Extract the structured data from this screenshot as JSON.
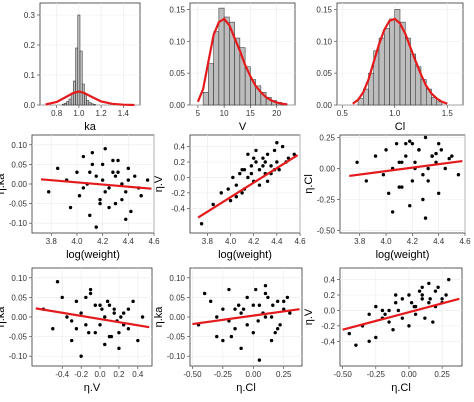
{
  "chart_data": [
    {
      "type": "bar",
      "id": "hist-ka",
      "title": "",
      "xlabel": "ka",
      "ylabel": "",
      "xlim": [
        0.65,
        1.55
      ],
      "ylim": [
        0,
        0.34
      ],
      "xticks": [
        "0.8",
        "1.0",
        "1.2",
        "1.4"
      ],
      "yticks": [
        "0.0",
        "0.1",
        "0.2",
        "0.3"
      ],
      "bin_edges": [
        0.85,
        0.87,
        0.89,
        0.91,
        0.93,
        0.95,
        0.97,
        0.99,
        1.01,
        1.03,
        1.05,
        1.07,
        1.09,
        1.11,
        1.13,
        1.15
      ],
      "values": [
        0.003,
        0.006,
        0.012,
        0.02,
        0.04,
        0.08,
        0.19,
        0.3,
        0.18,
        0.07,
        0.035,
        0.015,
        0.008,
        0.004,
        0.002
      ],
      "density_curve": {
        "x": [
          0.7,
          0.8,
          0.9,
          0.95,
          1.0,
          1.05,
          1.1,
          1.2,
          1.3,
          1.4,
          1.5
        ],
        "y": [
          0.002,
          0.01,
          0.03,
          0.04,
          0.045,
          0.04,
          0.03,
          0.012,
          0.004,
          0.001,
          0.0
        ]
      }
    },
    {
      "type": "bar",
      "id": "hist-v",
      "title": "",
      "xlabel": "V",
      "ylabel": "",
      "xlim": [
        3.5,
        23.5
      ],
      "ylim": [
        0,
        0.16
      ],
      "xticks": [
        "5",
        "10",
        "15",
        "20"
      ],
      "yticks": [
        "0.00",
        "0.05",
        "0.10",
        "0.15"
      ],
      "bin_edges": [
        6,
        7,
        8,
        9,
        10,
        11,
        12,
        13,
        14,
        15,
        16,
        17,
        18,
        19,
        20,
        21,
        22
      ],
      "values": [
        0.02,
        0.065,
        0.115,
        0.152,
        0.138,
        0.13,
        0.105,
        0.09,
        0.06,
        0.04,
        0.03,
        0.02,
        0.012,
        0.007,
        0.004,
        0.002
      ],
      "density_curve": {
        "x": [
          5,
          6,
          7,
          8,
          9,
          10,
          11,
          12,
          13,
          14,
          15,
          16,
          17,
          18,
          19,
          20,
          21,
          22
        ],
        "y": [
          0.005,
          0.025,
          0.068,
          0.11,
          0.13,
          0.135,
          0.125,
          0.105,
          0.085,
          0.063,
          0.045,
          0.03,
          0.02,
          0.012,
          0.007,
          0.004,
          0.002,
          0.001
        ]
      }
    },
    {
      "type": "bar",
      "id": "hist-cl",
      "title": "",
      "xlabel": "Cl",
      "ylabel": "",
      "xlim": [
        0.45,
        1.65
      ],
      "ylim": [
        0,
        0.16
      ],
      "xticks": [
        "0.5",
        "1.0",
        "1.5"
      ],
      "yticks": [
        "0.00",
        "0.05",
        "0.10",
        "0.15"
      ],
      "bin_edges": [
        0.65,
        0.7,
        0.75,
        0.8,
        0.85,
        0.9,
        0.95,
        1.0,
        1.05,
        1.1,
        1.15,
        1.2,
        1.25,
        1.3,
        1.35,
        1.4,
        1.45
      ],
      "values": [
        0.01,
        0.025,
        0.05,
        0.085,
        0.105,
        0.12,
        0.135,
        0.15,
        0.13,
        0.105,
        0.08,
        0.06,
        0.04,
        0.025,
        0.012,
        0.005
      ],
      "density_curve": {
        "x": [
          0.6,
          0.65,
          0.7,
          0.75,
          0.8,
          0.85,
          0.9,
          0.95,
          1.0,
          1.05,
          1.1,
          1.15,
          1.2,
          1.25,
          1.3,
          1.35,
          1.4,
          1.45,
          1.5
        ],
        "y": [
          0.002,
          0.008,
          0.02,
          0.04,
          0.068,
          0.095,
          0.118,
          0.132,
          0.135,
          0.128,
          0.112,
          0.09,
          0.068,
          0.048,
          0.03,
          0.018,
          0.01,
          0.005,
          0.002
        ]
      }
    },
    {
      "type": "scatter",
      "id": "scatter-logweight-ka",
      "title": "",
      "xlabel": "log(weight)",
      "ylabel": "η.ka",
      "xlim": [
        3.65,
        4.6
      ],
      "ylim": [
        -0.125,
        0.125
      ],
      "xticks": [
        "3.8",
        "4.0",
        "4.2",
        "4.4",
        "4.6"
      ],
      "yticks": [
        "-0.10",
        "-0.05",
        "0.00",
        "0.05",
        "0.10"
      ],
      "x": [
        3.78,
        3.85,
        3.92,
        3.95,
        4.0,
        4.02,
        4.05,
        4.08,
        4.1,
        4.12,
        4.15,
        4.18,
        4.2,
        4.22,
        4.25,
        4.28,
        4.3,
        4.32,
        4.35,
        4.38,
        4.4,
        4.42,
        4.45,
        4.5,
        4.55,
        4.05,
        4.1,
        4.15,
        4.2,
        4.25,
        4.3,
        4.35,
        4.4,
        4.12,
        4.22,
        4.32,
        4.18,
        4.28,
        4.38,
        4.48
      ],
      "y": [
        -0.02,
        0.04,
        0.01,
        -0.06,
        0.03,
        -0.03,
        0.07,
        0.0,
        -0.08,
        0.05,
        0.02,
        -0.04,
        0.01,
        0.09,
        -0.01,
        0.03,
        -0.05,
        0.06,
        0.0,
        -0.02,
        0.04,
        -0.07,
        0.02,
        -0.03,
        0.01,
        -0.01,
        0.03,
        -0.11,
        0.05,
        -0.06,
        0.02,
        -0.04,
        0.01,
        0.08,
        -0.02,
        0.03,
        -0.05,
        0.06,
        -0.09,
        -0.01
      ],
      "fit_line": {
        "x": [
          3.72,
          4.58
        ],
        "y": [
          0.012,
          -0.012
        ]
      }
    },
    {
      "type": "scatter",
      "id": "scatter-logweight-v",
      "title": "",
      "xlabel": "log(weight)",
      "ylabel": "η.V",
      "xlim": [
        3.65,
        4.6
      ],
      "ylim": [
        -0.72,
        0.55
      ],
      "xticks": [
        "3.8",
        "4.0",
        "4.2",
        "4.4",
        "4.6"
      ],
      "yticks": [
        "-0.4",
        "-0.2",
        "0.0",
        "0.2",
        "0.4"
      ],
      "x": [
        3.75,
        3.85,
        3.92,
        3.98,
        4.0,
        4.02,
        4.05,
        4.08,
        4.1,
        4.12,
        4.15,
        4.18,
        4.2,
        4.22,
        4.25,
        4.28,
        4.3,
        4.32,
        4.35,
        4.38,
        4.4,
        4.42,
        4.45,
        4.5,
        4.55,
        4.05,
        4.1,
        4.15,
        4.2,
        4.25,
        4.3,
        4.35,
        4.4,
        4.12,
        4.22,
        4.32,
        4.18,
        4.28,
        4.38,
        4.48
      ],
      "y": [
        -0.6,
        -0.35,
        -0.2,
        -0.15,
        -0.3,
        0.0,
        -0.1,
        0.05,
        -0.2,
        0.1,
        0.0,
        0.15,
        -0.05,
        0.2,
        0.1,
        0.25,
        0.05,
        0.3,
        0.15,
        0.35,
        0.2,
        0.1,
        0.4,
        0.25,
        0.3,
        -0.25,
        0.1,
        0.3,
        0.25,
        -0.1,
        0.2,
        0.05,
        0.45,
        -0.15,
        0.35,
        -0.05,
        0.05,
        0.15,
        0.1,
        0.2
      ],
      "fit_line": {
        "x": [
          3.72,
          4.58
        ],
        "y": [
          -0.52,
          0.29
        ]
      }
    },
    {
      "type": "scatter",
      "id": "scatter-logweight-cl",
      "title": "",
      "xlabel": "log(weight)",
      "ylabel": "η.Cl",
      "xlim": [
        3.65,
        4.6
      ],
      "ylim": [
        -0.52,
        0.27
      ],
      "xticks": [
        "3.8",
        "4.0",
        "4.2",
        "4.4",
        "4.6"
      ],
      "yticks": [
        "-0.50",
        "-0.25",
        "0.00",
        "0.25"
      ],
      "x": [
        3.78,
        3.85,
        3.92,
        3.98,
        4.0,
        4.02,
        4.05,
        4.08,
        4.1,
        4.12,
        4.15,
        4.18,
        4.2,
        4.22,
        4.25,
        4.28,
        4.3,
        4.32,
        4.35,
        4.38,
        4.4,
        4.42,
        4.45,
        4.5,
        4.55,
        4.05,
        4.1,
        4.15,
        4.2,
        4.25,
        4.3,
        4.35,
        4.4,
        4.12,
        4.22,
        4.32,
        4.18,
        4.28,
        4.38,
        4.48
      ],
      "y": [
        0.05,
        -0.1,
        0.1,
        -0.05,
        0.15,
        -0.2,
        0.0,
        0.2,
        -0.15,
        0.05,
        0.1,
        -0.3,
        0.2,
        0.0,
        0.15,
        -0.05,
        0.25,
        -0.1,
        0.1,
        0.05,
        -0.2,
        0.15,
        0.0,
        0.1,
        -0.05,
        -0.35,
        0.05,
        0.2,
        -0.1,
        0.15,
        -0.4,
        0.1,
        0.2,
        -0.15,
        0.05,
        0.0,
        0.22,
        -0.25,
        0.12,
        0.08
      ],
      "fit_line": {
        "x": [
          3.72,
          4.58
        ],
        "y": [
          -0.06,
          0.06
        ]
      }
    },
    {
      "type": "scatter",
      "id": "scatter-etav-ka",
      "title": "",
      "xlabel": "η.V",
      "ylabel": "η.ka",
      "xlim": [
        -0.72,
        0.55
      ],
      "ylim": [
        -0.125,
        0.125
      ],
      "xticks": [
        "-0.4",
        "-0.2",
        "0.0",
        "0.2",
        "0.4"
      ],
      "yticks": [
        "-0.10",
        "-0.05",
        "0.00",
        "0.05",
        "0.10"
      ],
      "x": [
        -0.6,
        -0.5,
        -0.4,
        -0.35,
        -0.3,
        -0.25,
        -0.2,
        -0.15,
        -0.1,
        -0.05,
        0.0,
        0.05,
        0.1,
        0.15,
        0.2,
        0.25,
        0.3,
        0.35,
        0.4,
        0.45,
        -0.45,
        -0.3,
        -0.2,
        -0.1,
        0.0,
        0.1,
        0.2,
        0.3,
        -0.15,
        0.05,
        0.15,
        0.25,
        -0.05,
        0.12,
        0.22,
        -0.25,
        0.08,
        0.18,
        -0.12,
        0.02
      ],
      "y": [
        0.02,
        -0.03,
        0.05,
        0.0,
        -0.06,
        0.04,
        0.01,
        -0.02,
        0.07,
        -0.04,
        0.03,
        0.0,
        -0.05,
        0.02,
        -0.08,
        0.01,
        -0.03,
        0.04,
        -0.06,
        0.0,
        0.09,
        -0.01,
        -0.1,
        0.06,
        -0.02,
        0.03,
        -0.04,
        0.02,
        0.05,
        -0.07,
        0.01,
        -0.02,
        0.03,
        -0.05,
        0.0,
        -0.03,
        0.04,
        -0.01,
        -0.04,
        0.02
      ],
      "fit_line": {
        "x": [
          -0.68,
          0.52
        ],
        "y": [
          0.022,
          -0.026
        ]
      }
    },
    {
      "type": "scatter",
      "id": "scatter-etacl-ka",
      "title": "",
      "xlabel": "η.Cl",
      "ylabel": "η.ka",
      "xlim": [
        -0.52,
        0.4
      ],
      "ylim": [
        -0.125,
        0.125
      ],
      "xticks": [
        "-0.50",
        "-0.25",
        "0.00",
        "0.25"
      ],
      "yticks": [
        "-0.10",
        "-0.05",
        "0.00",
        "0.05",
        "0.10"
      ],
      "x": [
        -0.45,
        -0.35,
        -0.3,
        -0.25,
        -0.2,
        -0.15,
        -0.1,
        -0.05,
        0.0,
        0.05,
        0.1,
        0.15,
        0.2,
        0.25,
        0.3,
        -0.4,
        -0.2,
        -0.1,
        0.0,
        0.1,
        0.2,
        -0.15,
        0.05,
        0.15,
        0.25,
        -0.05,
        0.12,
        -0.25,
        0.08,
        0.18,
        -0.12,
        0.02,
        0.28,
        -0.3,
        0.22,
        -0.08,
        0.1,
        -0.18,
        0.04,
        0.16
      ],
      "y": [
        -0.02,
        0.04,
        -0.05,
        0.02,
        0.07,
        -0.03,
        0.01,
        0.05,
        -0.04,
        0.03,
        0.0,
        -0.06,
        0.04,
        0.02,
        0.01,
        0.06,
        -0.01,
        -0.08,
        0.03,
        0.06,
        -0.03,
        0.02,
        -0.11,
        0.0,
        0.04,
        -0.02,
        0.05,
        -0.06,
        0.01,
        -0.04,
        0.03,
        0.07,
        0.05,
        0.0,
        -0.02,
        0.02,
        0.08,
        -0.05,
        -0.01,
        0.03
      ],
      "fit_line": {
        "x": [
          -0.5,
          0.38
        ],
        "y": [
          -0.018,
          0.02
        ]
      }
    },
    {
      "type": "scatter",
      "id": "scatter-etacl-v",
      "title": "",
      "xlabel": "η.Cl",
      "ylabel": "η.V",
      "xlim": [
        -0.52,
        0.4
      ],
      "ylim": [
        -0.72,
        0.55
      ],
      "xticks": [
        "-0.50",
        "-0.25",
        "0.00",
        "0.25"
      ],
      "yticks": [
        "-0.4",
        "-0.2",
        "0.0",
        "0.2",
        "0.4"
      ],
      "x": [
        -0.45,
        -0.35,
        -0.3,
        -0.25,
        -0.2,
        -0.15,
        -0.1,
        -0.05,
        0.0,
        0.05,
        0.1,
        0.15,
        0.2,
        0.25,
        0.3,
        -0.4,
        -0.2,
        -0.1,
        0.0,
        0.1,
        0.2,
        -0.15,
        0.05,
        0.15,
        0.25,
        -0.05,
        0.12,
        -0.25,
        0.08,
        0.18,
        -0.12,
        0.02,
        0.28,
        -0.3,
        0.22,
        -0.08,
        0.1,
        -0.18,
        0.04,
        0.16
      ],
      "y": [
        -0.3,
        -0.2,
        -0.05,
        -0.35,
        0.0,
        -0.15,
        0.1,
        -0.1,
        0.2,
        0.05,
        0.3,
        0.1,
        0.25,
        0.15,
        0.4,
        -0.45,
        -0.1,
        0.2,
        -0.2,
        0.15,
        0.05,
        0.0,
        -0.05,
        0.35,
        0.1,
        0.15,
        -0.1,
        0.05,
        0.25,
        -0.15,
        -0.25,
        0.1,
        0.2,
        -0.4,
        0.3,
        0.0,
        0.2,
        -0.05,
        0.05,
        0.15
      ],
      "fit_line": {
        "x": [
          -0.5,
          0.38
        ],
        "y": [
          -0.25,
          0.15
        ]
      }
    }
  ]
}
